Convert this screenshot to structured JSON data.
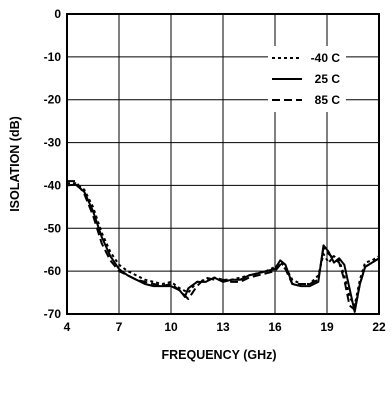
{
  "chart_data": {
    "type": "line",
    "title": "",
    "xlabel": "FREQUENCY (GHz)",
    "ylabel": "ISOLATION (dB)",
    "xlim": [
      4,
      22
    ],
    "ylim": [
      -70,
      0
    ],
    "xticks": [
      4,
      7,
      10,
      13,
      16,
      19,
      22
    ],
    "yticks": [
      0,
      -10,
      -20,
      -30,
      -40,
      -50,
      -60,
      -70
    ],
    "xtick_labels": [
      "4",
      "7",
      "10",
      "13",
      "16",
      "19",
      "22"
    ],
    "ytick_labels": [
      "0",
      "-10",
      "-20",
      "-30",
      "-40",
      "-50",
      "-60",
      "-70"
    ],
    "grid": true,
    "legend_position": "top-right",
    "series": [
      {
        "name": "-40 C",
        "line_style": "dotted",
        "x": [
          4.0,
          4.5,
          5.0,
          5.5,
          6.0,
          6.5,
          7.0,
          7.5,
          8.0,
          8.5,
          9.0,
          9.5,
          10.0,
          10.5,
          11.0,
          11.5,
          12.0,
          12.5,
          13.0,
          13.5,
          14.0,
          14.5,
          15.0,
          15.5,
          16.0,
          16.3,
          16.6,
          17.0,
          17.5,
          18.0,
          18.5,
          18.8,
          19.1,
          19.4,
          19.7,
          20.0,
          20.3,
          20.6,
          20.9,
          21.2,
          21.6,
          22.0
        ],
        "y": [
          -39.5,
          -39.5,
          -41.0,
          -45.0,
          -51.0,
          -55.5,
          -58.5,
          -60.0,
          -61.0,
          -62.0,
          -62.5,
          -63.0,
          -62.5,
          -64.0,
          -65.0,
          -62.5,
          -62.0,
          -61.5,
          -62.0,
          -62.0,
          -61.5,
          -61.0,
          -60.5,
          -60.0,
          -59.0,
          -58.0,
          -59.0,
          -62.0,
          -63.0,
          -63.0,
          -61.0,
          -56.0,
          -58.0,
          -56.5,
          -57.5,
          -61.0,
          -66.0,
          -68.0,
          -62.0,
          -58.0,
          -57.5,
          -56.5
        ]
      },
      {
        "name": "25 C",
        "line_style": "solid",
        "x": [
          4.0,
          4.5,
          5.0,
          5.5,
          6.0,
          6.5,
          7.0,
          7.5,
          8.0,
          8.5,
          9.0,
          9.5,
          10.0,
          10.5,
          10.8,
          11.0,
          11.5,
          12.0,
          12.5,
          13.0,
          13.5,
          14.0,
          14.5,
          15.0,
          15.5,
          16.0,
          16.3,
          16.6,
          17.0,
          17.5,
          18.0,
          18.5,
          18.8,
          19.1,
          19.4,
          19.7,
          20.0,
          20.3,
          20.6,
          20.9,
          21.2,
          21.6,
          22.0
        ],
        "y": [
          -40.0,
          -39.8,
          -41.5,
          -46.0,
          -52.0,
          -56.5,
          -59.5,
          -61.0,
          -62.0,
          -63.0,
          -63.5,
          -63.5,
          -63.5,
          -64.5,
          -66.0,
          -64.0,
          -62.5,
          -62.5,
          -61.5,
          -62.5,
          -62.0,
          -62.0,
          -61.0,
          -60.5,
          -60.0,
          -59.5,
          -57.5,
          -58.5,
          -63.0,
          -63.5,
          -63.5,
          -62.5,
          -54.0,
          -55.5,
          -58.0,
          -57.0,
          -58.5,
          -64.0,
          -69.5,
          -63.0,
          -59.0,
          -58.0,
          -57.0
        ]
      },
      {
        "name": "85 C",
        "line_style": "dashed",
        "x": [
          4.0,
          4.5,
          5.0,
          5.5,
          6.0,
          6.5,
          7.0,
          7.5,
          8.0,
          8.5,
          9.0,
          9.5,
          10.0,
          10.5,
          11.0,
          11.5,
          12.0,
          12.5,
          13.0,
          13.5,
          14.0,
          14.5,
          15.0,
          15.5,
          16.0,
          16.3,
          16.6,
          17.0,
          17.5,
          18.0,
          18.5,
          18.8,
          19.1,
          19.4,
          19.7,
          20.0,
          20.3,
          20.6,
          20.9,
          21.2,
          21.6,
          22.0
        ],
        "y": [
          -39.0,
          -39.0,
          -42.0,
          -47.0,
          -53.5,
          -57.5,
          -60.0,
          -61.0,
          -62.0,
          -62.5,
          -63.0,
          -63.5,
          -63.0,
          -64.5,
          -66.5,
          -63.5,
          -61.5,
          -62.0,
          -62.0,
          -62.5,
          -62.5,
          -61.5,
          -61.0,
          -60.5,
          -60.0,
          -58.5,
          -59.5,
          -63.0,
          -63.0,
          -63.0,
          -62.0,
          -54.5,
          -56.0,
          -57.0,
          -58.0,
          -62.0,
          -68.0,
          -69.0,
          -63.0,
          -59.0,
          -58.0,
          -57.0
        ]
      }
    ]
  }
}
